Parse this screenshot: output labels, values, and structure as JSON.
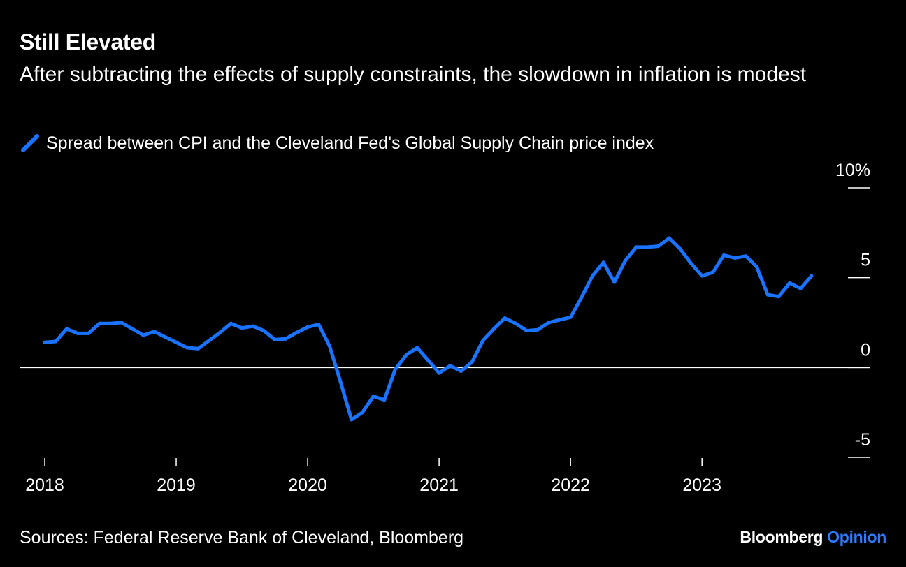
{
  "title": "Still Elevated",
  "subtitle": "After subtracting the effects of supply constraints, the slowdown in inflation is modest",
  "source": "Sources: Federal Reserve Bank of Cleveland, Bloomberg",
  "brand": {
    "name": "Bloomberg",
    "product": "Opinion"
  },
  "colors": {
    "background": "#000000",
    "line": "#1a73ff",
    "text": "#ffffff",
    "brand_accent": "#2f7bff"
  },
  "chart_data": {
    "type": "line",
    "title": "Still Elevated",
    "subtitle": "After subtracting the effects of supply constraints, the slowdown in inflation is modest",
    "xlabel": "",
    "ylabel": "",
    "x_tick_labels": [
      "2018",
      "2019",
      "2020",
      "2021",
      "2022",
      "2023"
    ],
    "y_tick_labels": [
      "10%",
      "5",
      "0",
      "-5"
    ],
    "y_ticks": [
      10,
      5,
      0,
      -5
    ],
    "ylim": [
      -5,
      10
    ],
    "xlim": [
      "2018-01",
      "2023-12"
    ],
    "legend_position": "top-left",
    "grid": false,
    "zero_line": true,
    "series": [
      {
        "name": "Spread between CPI and the Cleveland Fed's Global Supply Chain price index",
        "x": [
          "2018-01",
          "2018-02",
          "2018-03",
          "2018-04",
          "2018-05",
          "2018-06",
          "2018-07",
          "2018-08",
          "2018-09",
          "2018-10",
          "2018-11",
          "2018-12",
          "2019-01",
          "2019-02",
          "2019-03",
          "2019-04",
          "2019-05",
          "2019-06",
          "2019-07",
          "2019-08",
          "2019-09",
          "2019-10",
          "2019-11",
          "2019-12",
          "2020-01",
          "2020-02",
          "2020-03",
          "2020-04",
          "2020-05",
          "2020-06",
          "2020-07",
          "2020-08",
          "2020-09",
          "2020-10",
          "2020-11",
          "2020-12",
          "2021-01",
          "2021-02",
          "2021-03",
          "2021-04",
          "2021-05",
          "2021-06",
          "2021-07",
          "2021-08",
          "2021-09",
          "2021-10",
          "2021-11",
          "2021-12",
          "2022-01",
          "2022-02",
          "2022-03",
          "2022-04",
          "2022-05",
          "2022-06",
          "2022-07",
          "2022-08",
          "2022-09",
          "2022-10",
          "2022-11",
          "2022-12",
          "2023-01",
          "2023-02",
          "2023-03",
          "2023-04",
          "2023-05",
          "2023-06",
          "2023-07",
          "2023-08",
          "2023-09",
          "2023-10",
          "2023-11"
        ],
        "values": [
          1.4,
          1.45,
          2.15,
          1.9,
          1.9,
          2.45,
          2.45,
          2.5,
          2.15,
          1.8,
          2.0,
          1.7,
          1.4,
          1.1,
          1.05,
          1.5,
          1.95,
          2.45,
          2.2,
          2.3,
          2.05,
          1.55,
          1.6,
          1.95,
          2.25,
          2.4,
          1.2,
          -0.8,
          -2.9,
          -2.5,
          -1.6,
          -1.8,
          -0.1,
          0.7,
          1.1,
          0.4,
          -0.3,
          0.1,
          -0.2,
          0.3,
          1.5,
          2.15,
          2.75,
          2.45,
          2.05,
          2.1,
          2.5,
          2.65,
          2.8,
          3.9,
          5.1,
          5.85,
          4.75,
          5.95,
          6.7,
          6.7,
          6.75,
          7.2,
          6.6,
          5.8,
          5.1,
          5.3,
          6.25,
          6.1,
          6.2,
          5.6,
          4.05,
          3.95,
          4.7,
          4.4,
          5.1
        ]
      }
    ]
  }
}
